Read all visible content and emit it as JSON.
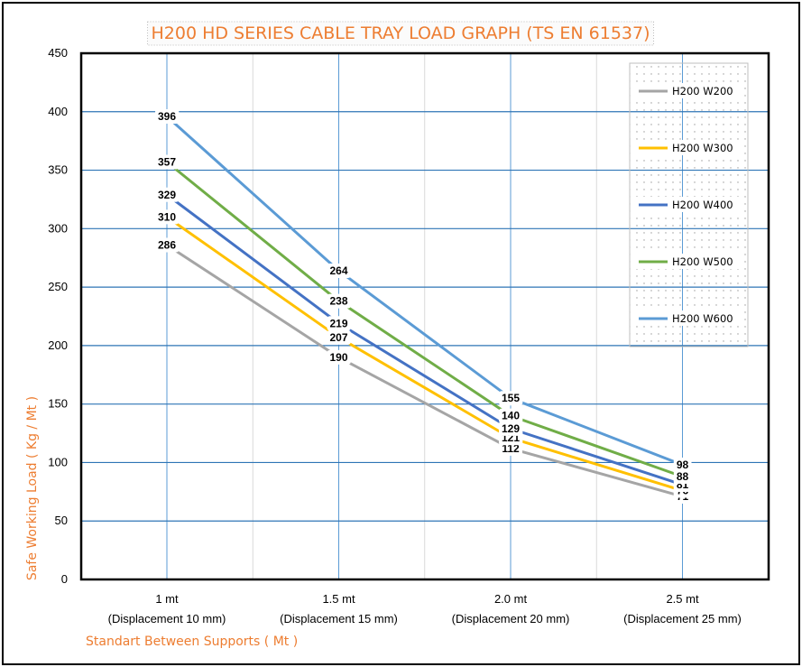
{
  "chart_data": {
    "type": "line",
    "title": "H200 HD SERIES CABLE TRAY LOAD GRAPH (TS EN 61537)",
    "xlabel": "Standart Between Supports ( Mt )",
    "ylabel": "Safe Working Load ( Kg / Mt )",
    "ylim": [
      0,
      450
    ],
    "yticks": [
      0,
      50,
      100,
      150,
      200,
      250,
      300,
      350,
      400,
      450
    ],
    "grid": true,
    "legend_position": "top-right",
    "categories": [
      {
        "line1": "1 mt",
        "line2": "(Displacement 10 mm)"
      },
      {
        "line1": "1.5 mt",
        "line2": "(Displacement 15 mm)"
      },
      {
        "line1": "2.0 mt",
        "line2": "(Displacement 20 mm)"
      },
      {
        "line1": "2.5 mt",
        "line2": "(Displacement 25 mm)"
      }
    ],
    "series": [
      {
        "name": "H200 W200",
        "color": "#A5A5A5",
        "values": [
          286,
          190,
          112,
          71
        ]
      },
      {
        "name": "H200 W300",
        "color": "#FFC000",
        "values": [
          310,
          207,
          121,
          76
        ]
      },
      {
        "name": "H200 W400",
        "color": "#4472C4",
        "values": [
          329,
          219,
          129,
          81
        ]
      },
      {
        "name": "H200 W500",
        "color": "#70AD47",
        "values": [
          357,
          238,
          140,
          88
        ]
      },
      {
        "name": "H200 W600",
        "color": "#5B9BD5",
        "values": [
          396,
          264,
          155,
          98
        ]
      }
    ]
  }
}
